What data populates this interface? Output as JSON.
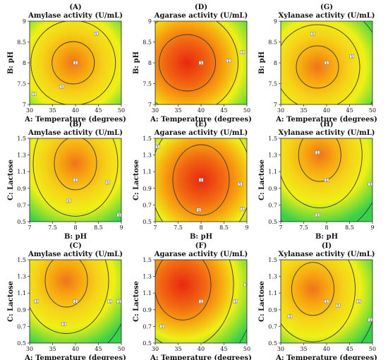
{
  "chart_data": [
    {
      "letter": "(A)",
      "title": "Amylase activity (U/mL)",
      "type": "heatmap",
      "xlabel": "A: Temperature (degrees)",
      "ylabel": "B: pH",
      "xticks": [
        "30",
        "35",
        "40",
        "45",
        "50"
      ],
      "yticks": [
        "7",
        "7.5",
        "8",
        "8.5",
        "9"
      ],
      "xlim": [
        30,
        50
      ],
      "ylim": [
        7,
        9
      ],
      "hot_center": [
        39.5,
        8.0
      ],
      "hot_strength": "medium",
      "contour_labels": [
        {
          "x": 40,
          "y": 8,
          "text": "5"
        },
        {
          "x": 37,
          "y": 7.43,
          "text": "5"
        },
        {
          "x": 44.5,
          "y": 8.7,
          "text": "5"
        },
        {
          "x": 31,
          "y": 7.25,
          "text": "5"
        }
      ]
    },
    {
      "letter": "(D)",
      "title": "Agarase activity (U/mL)",
      "type": "heatmap",
      "xlabel": "A: Temperature (degrees)",
      "ylabel": "B: pH",
      "xticks": [
        "30",
        "35",
        "40",
        "45",
        "50"
      ],
      "yticks": [
        "7",
        "7.5",
        "8",
        "8.5",
        "9"
      ],
      "xlim": [
        30,
        50
      ],
      "ylim": [
        7,
        9
      ],
      "hot_center": [
        37,
        8.0
      ],
      "hot_strength": "strong",
      "contour_labels": [
        {
          "x": 40,
          "y": 8,
          "text": "5"
        },
        {
          "x": 46,
          "y": 8.05,
          "text": "5"
        },
        {
          "x": 49,
          "y": 8.25,
          "text": "5"
        }
      ]
    },
    {
      "letter": "(G)",
      "title": "Xylanase activity (U/mL)",
      "type": "heatmap",
      "xlabel": "A: Temperature (degrees)",
      "ylabel": "B: pH",
      "xticks": [
        "30",
        "35",
        "40",
        "45",
        "50"
      ],
      "yticks": [
        "7",
        "7.5",
        "8",
        "8.5",
        "9"
      ],
      "xlim": [
        30,
        50
      ],
      "ylim": [
        7,
        9
      ],
      "hot_center": [
        38,
        7.9
      ],
      "hot_strength": "medium",
      "contour_labels": [
        {
          "x": 40,
          "y": 8,
          "text": "5"
        },
        {
          "x": 37,
          "y": 8.7,
          "text": "5"
        },
        {
          "x": 45.5,
          "y": 8.15,
          "text": "5"
        }
      ]
    },
    {
      "letter": "(B)",
      "title": "Amylase activity (U/mL)",
      "type": "heatmap",
      "xlabel": "B: pH",
      "ylabel": "C: Lactose",
      "xticks": [
        "7",
        "7.5",
        "8",
        "8.5",
        "9"
      ],
      "yticks": [
        "0.5",
        "0.7",
        "0.9",
        "1.1",
        "1.3",
        "1.5"
      ],
      "xlim": [
        7,
        9
      ],
      "ylim": [
        0.5,
        1.5
      ],
      "hot_center": [
        8.0,
        1.2
      ],
      "hot_strength": "medium",
      "contour_labels": [
        {
          "x": 8,
          "y": 1.0,
          "text": "5"
        },
        {
          "x": 7.85,
          "y": 0.75,
          "text": "5"
        },
        {
          "x": 8.7,
          "y": 0.97,
          "text": "5"
        },
        {
          "x": 8.95,
          "y": 0.58,
          "text": "5"
        }
      ]
    },
    {
      "letter": "(E)",
      "title": "Agarase activity (U/mL)",
      "type": "heatmap",
      "xlabel": "B: pH",
      "ylabel": "C: Lactose",
      "xticks": [
        "7",
        "7.5",
        "8",
        "8.5",
        "9"
      ],
      "yticks": [
        "0.5",
        "0.7",
        "0.9",
        "1.1",
        "1.3",
        "1.5"
      ],
      "xlim": [
        7,
        9
      ],
      "ylim": [
        0.5,
        1.5
      ],
      "hot_center": [
        8.0,
        1.0
      ],
      "hot_strength": "strong",
      "contour_labels": [
        {
          "x": 8,
          "y": 1.0,
          "text": "5"
        },
        {
          "x": 7.95,
          "y": 0.64,
          "text": "5"
        },
        {
          "x": 7.05,
          "y": 1.4,
          "text": "5"
        },
        {
          "x": 8.85,
          "y": 0.95,
          "text": "5"
        },
        {
          "x": 8.9,
          "y": 0.65,
          "text": "5"
        }
      ]
    },
    {
      "letter": "(H)",
      "title": "Xylanase activity (U/mL)",
      "type": "heatmap",
      "xlabel": "B: pH",
      "ylabel": "C: Lactose",
      "xticks": [
        "7",
        "7.5",
        "8",
        "8.5",
        "9"
      ],
      "yticks": [
        "0.5",
        "0.7",
        "0.9",
        "1.1",
        "1.3",
        "1.5"
      ],
      "xlim": [
        7,
        9
      ],
      "ylim": [
        0.5,
        1.5
      ],
      "hot_center": [
        7.85,
        1.3
      ],
      "hot_strength": "medium",
      "contour_labels": [
        {
          "x": 8,
          "y": 1.0,
          "text": "5"
        },
        {
          "x": 7.8,
          "y": 1.33,
          "text": "5"
        },
        {
          "x": 7.8,
          "y": 0.58,
          "text": "5"
        },
        {
          "x": 8.95,
          "y": 0.95,
          "text": "5"
        }
      ]
    },
    {
      "letter": "(C)",
      "title": "Amylase activity (U/mL)",
      "type": "heatmap",
      "xlabel": "A: Temperature (degrees)",
      "ylabel": "C: Lactose",
      "xticks": [
        "30",
        "35",
        "40",
        "45",
        "50"
      ],
      "yticks": [
        "0.5",
        "0.7",
        "0.9",
        "1.1",
        "1.3",
        "1.5"
      ],
      "xlim": [
        30,
        50
      ],
      "ylim": [
        0.5,
        1.5
      ],
      "hot_center": [
        38,
        1.25
      ],
      "hot_strength": "medium",
      "contour_labels": [
        {
          "x": 40,
          "y": 1.0,
          "text": "5"
        },
        {
          "x": 31.5,
          "y": 1.0,
          "text": "5"
        },
        {
          "x": 37.5,
          "y": 0.73,
          "text": "5"
        },
        {
          "x": 47.5,
          "y": 1.0,
          "text": "5"
        },
        {
          "x": 49.5,
          "y": 1.0,
          "text": "5"
        }
      ]
    },
    {
      "letter": "(F)",
      "title": "Agarase activity (U/mL)",
      "type": "heatmap",
      "xlabel": "A: Temperature (degrees)",
      "ylabel": "C: Lactose",
      "xticks": [
        "30",
        "35",
        "40",
        "45",
        "50"
      ],
      "yticks": [
        "0.5",
        "0.7",
        "0.9",
        "1.1",
        "1.3",
        "1.5"
      ],
      "xlim": [
        30,
        50
      ],
      "ylim": [
        0.5,
        1.5
      ],
      "hot_center": [
        36,
        1.2
      ],
      "hot_strength": "strong",
      "contour_labels": [
        {
          "x": 40,
          "y": 1.0,
          "text": "5"
        },
        {
          "x": 31.5,
          "y": 0.7,
          "text": "5"
        },
        {
          "x": 47.5,
          "y": 1.0,
          "text": "5"
        },
        {
          "x": 49.8,
          "y": 1.2,
          "text": "5"
        }
      ]
    },
    {
      "letter": "(I)",
      "title": "Xylanase activity (U/mL)",
      "type": "heatmap",
      "xlabel": "A: Temperature (degrees)",
      "ylabel": "C: Lactose",
      "xticks": [
        "30",
        "35",
        "40",
        "45",
        "50"
      ],
      "yticks": [
        "0.5",
        "0.7",
        "0.9",
        "1.1",
        "1.3",
        "1.5"
      ],
      "xlim": [
        30,
        50
      ],
      "ylim": [
        0.5,
        1.5
      ],
      "hot_center": [
        37,
        1.15
      ],
      "hot_strength": "medium",
      "contour_labels": [
        {
          "x": 40,
          "y": 1.0,
          "text": "5"
        },
        {
          "x": 42.5,
          "y": 0.95,
          "text": "5"
        },
        {
          "x": 47,
          "y": 1.0,
          "text": "5"
        },
        {
          "x": 32,
          "y": 0.82,
          "text": "5"
        },
        {
          "x": 49.5,
          "y": 0.78,
          "text": "5"
        }
      ]
    }
  ],
  "colors": {
    "hot": "#e82810",
    "warm": "#f7a810",
    "mid": "#eef016",
    "cool": "#3bd04a"
  }
}
